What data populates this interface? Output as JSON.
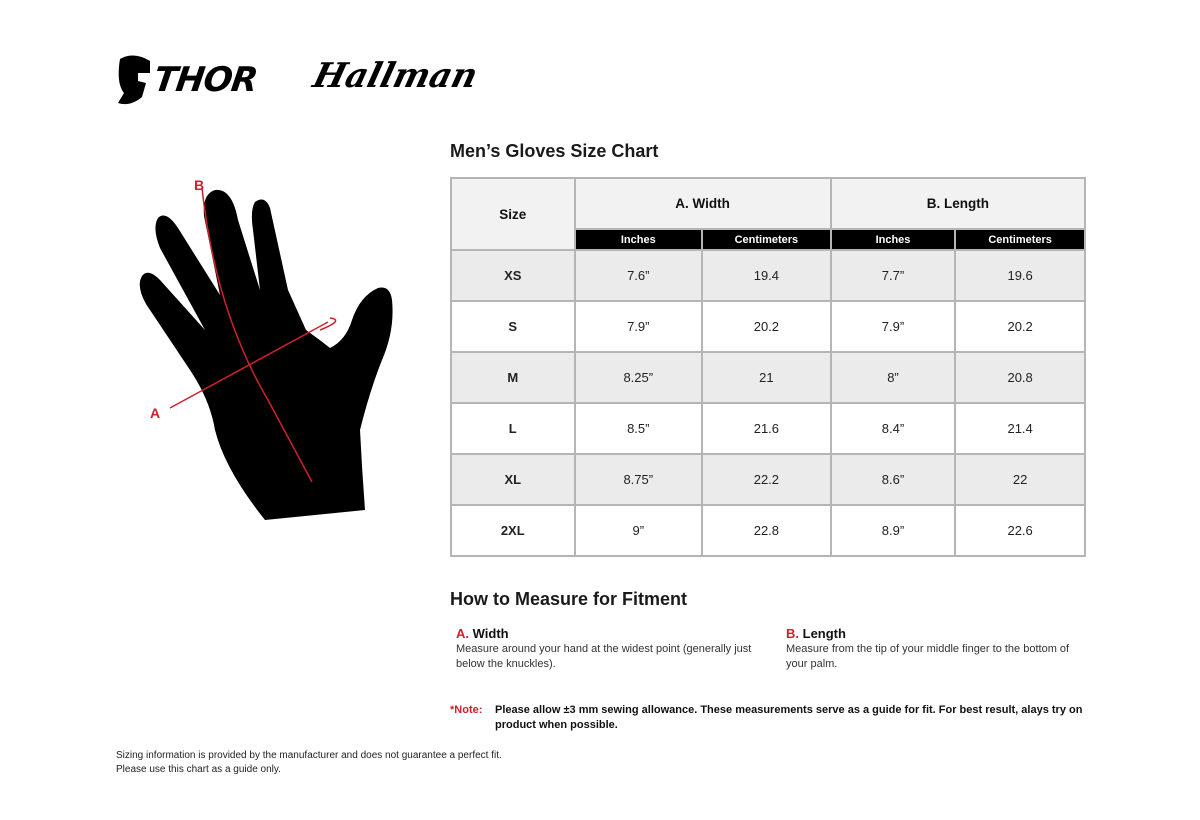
{
  "brand": {
    "logo1": "THOR",
    "logo2": "Hallman"
  },
  "diagram": {
    "label_a": "A",
    "label_b": "B",
    "accent": "#d0202e"
  },
  "chart": {
    "title": "Men’s Gloves Size Chart",
    "headers": {
      "size": "Size",
      "width": "A. Width",
      "length": "B. Length",
      "inches": "Inches",
      "cm": "Centimeters"
    },
    "rows": [
      {
        "size": "XS",
        "w_in": "7.6”",
        "w_cm": "19.4",
        "l_in": "7.7”",
        "l_cm": "19.6"
      },
      {
        "size": "S",
        "w_in": "7.9”",
        "w_cm": "20.2",
        "l_in": "7.9”",
        "l_cm": "20.2"
      },
      {
        "size": "M",
        "w_in": "8.25”",
        "w_cm": "21",
        "l_in": "8”",
        "l_cm": "20.8"
      },
      {
        "size": "L",
        "w_in": "8.5”",
        "w_cm": "21.6",
        "l_in": "8.4”",
        "l_cm": "21.4"
      },
      {
        "size": "XL",
        "w_in": "8.75”",
        "w_cm": "22.2",
        "l_in": "8.6”",
        "l_cm": "22"
      },
      {
        "size": "2XL",
        "w_in": "9”",
        "w_cm": "22.8",
        "l_in": "8.9”",
        "l_cm": "22.6"
      }
    ]
  },
  "measure": {
    "title": "How to Measure for Fitment",
    "a": {
      "letter": "A.",
      "title": "Width",
      "text": "Measure around your hand at the widest point (generally just below the knuckles)."
    },
    "b": {
      "letter": "B.",
      "title": "Length",
      "text": "Measure from the tip of your middle finger to the bottom of your palm."
    }
  },
  "note": {
    "label": "*Note:",
    "text": "Please allow ±3 mm sewing allowance. These measurements serve as a guide for fit. For best result, alays try on product when possible."
  },
  "footer": {
    "line1": "Sizing information is provided by the manufacturer and does not guarantee a perfect fit.",
    "line2": "Please use this chart as a guide only."
  }
}
